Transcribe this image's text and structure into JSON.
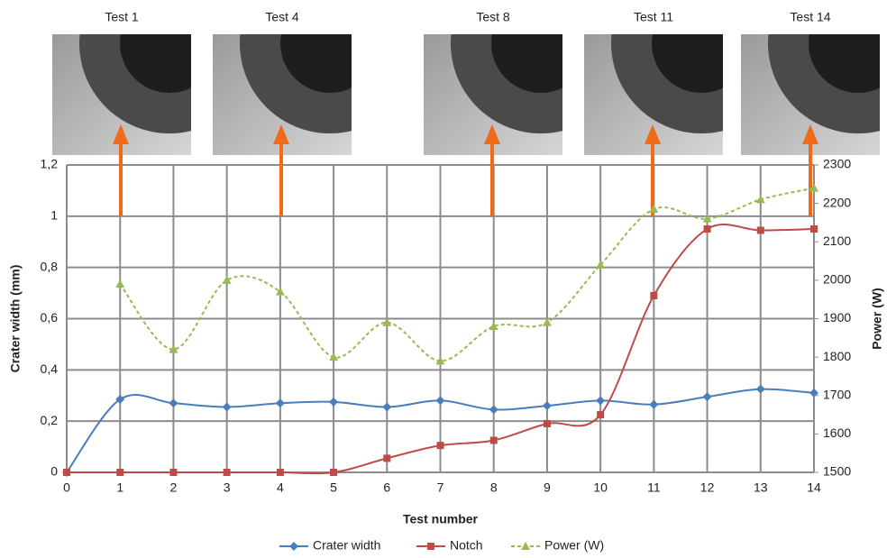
{
  "chart_data": {
    "type": "line",
    "photos": [
      "Test 1",
      "Test 4",
      "Test 8",
      "Test 11",
      "Test 14"
    ],
    "x_label": "Test number",
    "y_label": "Crater width (mm)",
    "y2_label": "Power (W)",
    "x": [
      0,
      1,
      2,
      3,
      4,
      5,
      6,
      7,
      8,
      9,
      10,
      11,
      12,
      13,
      14
    ],
    "series": [
      {
        "name": "Crater width",
        "color": "#4a7ebb",
        "marker": "diamond",
        "values": [
          0,
          0.285,
          0.27,
          0.255,
          0.27,
          0.275,
          0.255,
          0.28,
          0.245,
          0.26,
          0.28,
          0.265,
          0.295,
          0.325,
          0.31
        ]
      },
      {
        "name": "Notch",
        "color": "#be4b48",
        "marker": "square",
        "values": [
          0,
          0,
          0,
          0,
          0,
          0,
          0.055,
          0.105,
          0.125,
          0.19,
          0.225,
          0.69,
          0.95,
          0.945,
          0.95
        ]
      },
      {
        "name": "Power (W)",
        "color": "#98b954",
        "marker": "triangle",
        "dashed": true,
        "axis": "y2",
        "values": [
          null,
          1990,
          1820,
          2000,
          1970,
          1800,
          1890,
          1790,
          1880,
          1890,
          2040,
          2185,
          2160,
          2210,
          2240
        ]
      }
    ],
    "xlim": [
      0,
      14
    ],
    "xticks": [
      0,
      1,
      2,
      3,
      4,
      5,
      6,
      7,
      8,
      9,
      10,
      11,
      12,
      13,
      14
    ],
    "ylim": [
      0,
      1.2
    ],
    "yticks": [
      0,
      {
        "value": 0.2,
        "label": "0,2"
      },
      {
        "value": 0.4,
        "label": "0,4"
      },
      {
        "value": 0.6,
        "label": "0,6"
      },
      {
        "value": 0.8,
        "label": "0,8"
      },
      1,
      {
        "value": 1.2,
        "label": "1,2"
      }
    ],
    "y2lim": [
      1500,
      2300
    ],
    "y2ticks": [
      1500,
      1600,
      1700,
      1800,
      1900,
      2000,
      2100,
      2200,
      2300
    ],
    "grid": true,
    "legend": "bottom"
  }
}
